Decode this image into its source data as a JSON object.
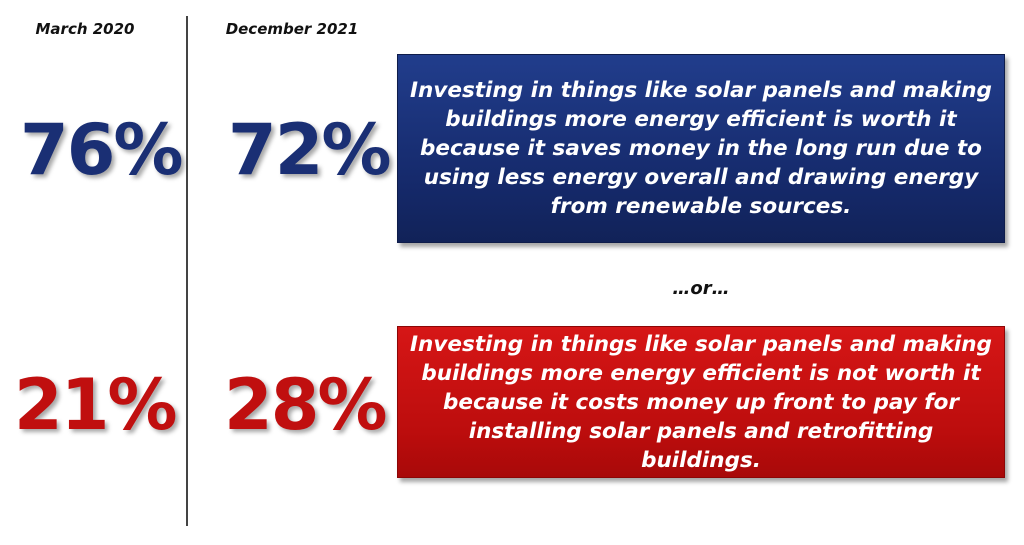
{
  "chart_data": {
    "type": "table",
    "columns": [
      "March 2020",
      "December 2021"
    ],
    "rows": [
      {
        "statement": "Investing in things like solar panels and making buildings more energy efficient is worth it because it saves money in the long run due to using less energy overall and drawing energy from renewable sources.",
        "values": [
          "76%",
          "72%"
        ],
        "color": "#1a2f74"
      },
      {
        "statement": "Investing in things like solar panels and making buildings more energy efficient is not worth it because it costs money up front to pay for installing solar panels and retrofitting buildings.",
        "values": [
          "21%",
          "28%"
        ],
        "color": "#c00f0f"
      }
    ],
    "separator": "…or…"
  }
}
